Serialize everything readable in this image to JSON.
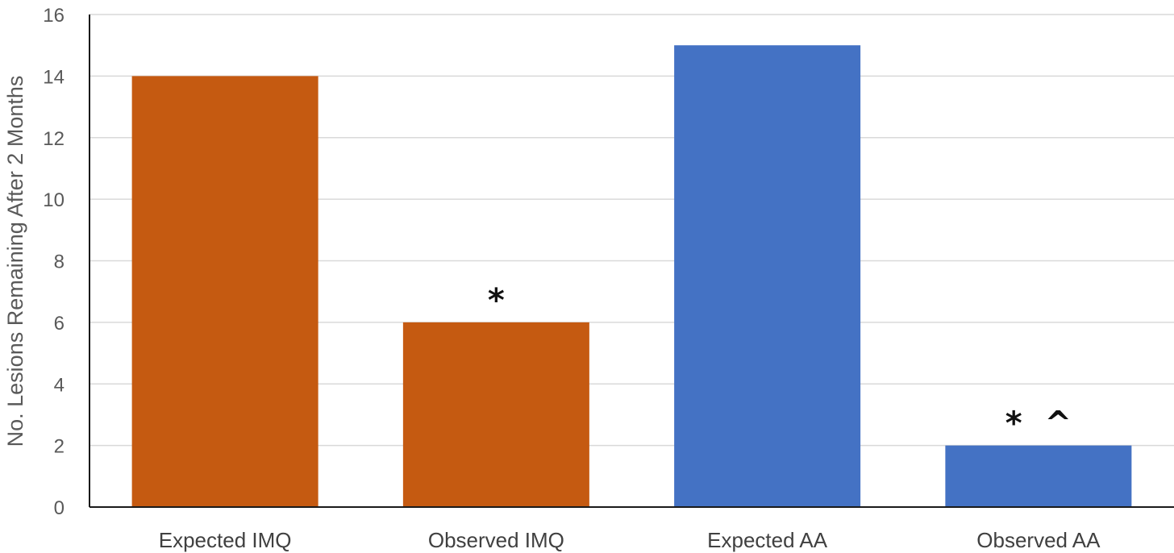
{
  "chart_data": {
    "type": "bar",
    "categories": [
      "Expected IMQ",
      "Observed IMQ",
      "Expected AA",
      "Observed AA"
    ],
    "values": [
      14,
      6,
      15,
      2
    ],
    "colors": [
      "#c55a11",
      "#c55a11",
      "#4472c4",
      "#4472c4"
    ],
    "annotations": [
      "",
      "*",
      "",
      "*  ^"
    ],
    "ylabel": "No. Lesions Remaining After 2 Months",
    "ylim": [
      0,
      16
    ],
    "yticks": [
      0,
      2,
      4,
      6,
      8,
      10,
      12,
      14,
      16
    ],
    "grid": true,
    "legend": "none"
  }
}
